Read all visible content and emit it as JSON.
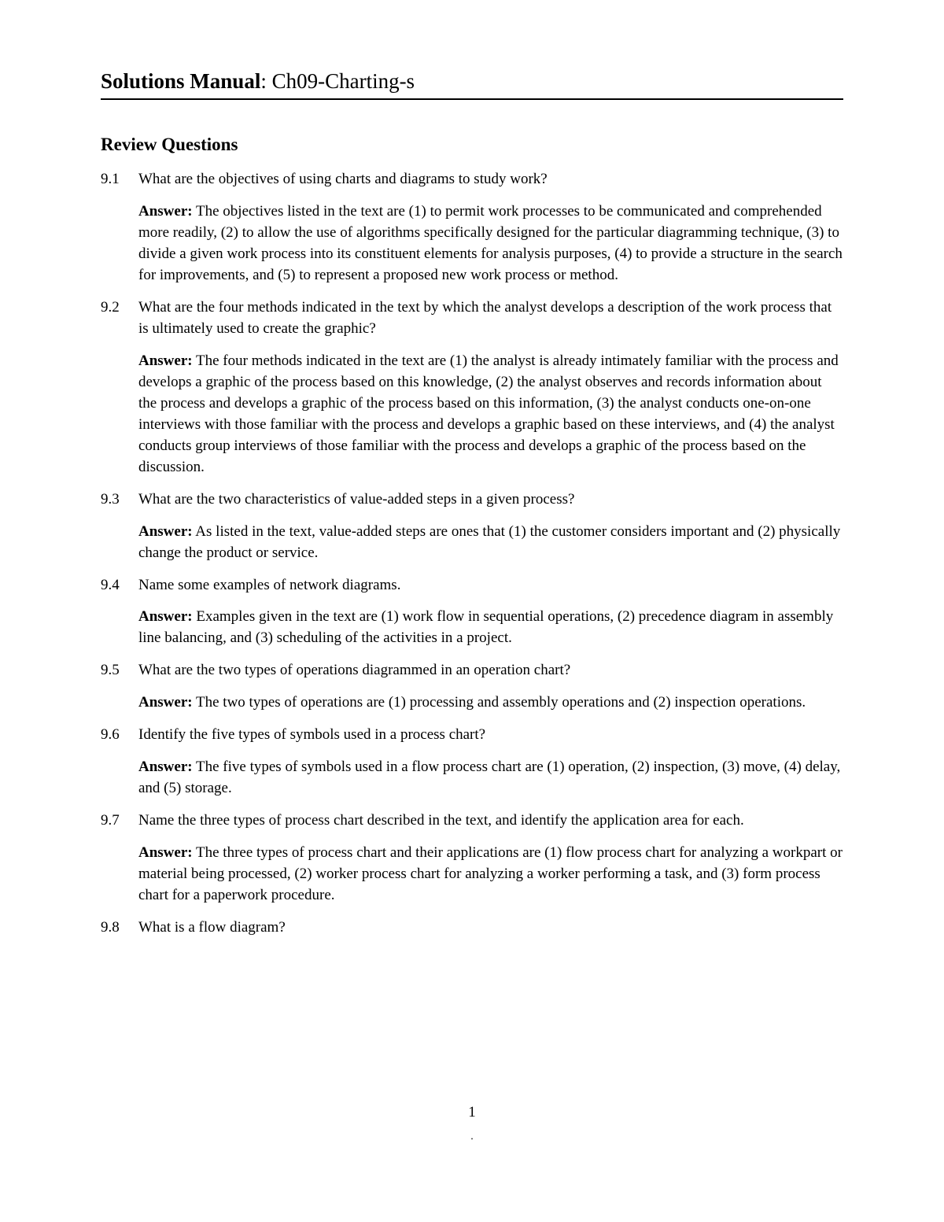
{
  "header": {
    "title_bold": "Solutions Manual",
    "title_rest": ": Ch09-Charting-s"
  },
  "section_title": "Review Questions",
  "answer_label": "Answer:",
  "questions": [
    {
      "number": "9.1",
      "question": "What are the objectives of using charts and diagrams to study work?",
      "answer": "The objectives listed in the text are (1) to permit work processes to be communicated and comprehended more readily, (2) to allow the use of algorithms specifically designed for the particular diagramming technique, (3) to divide a given work process into its constituent elements for analysis purposes, (4) to provide a structure in the search for improvements, and (5) to represent a proposed new work process or method."
    },
    {
      "number": "9.2",
      "question": "What are the four methods indicated in the text by which the analyst develops a description of the work process that is ultimately used to create the graphic?",
      "answer": "The four methods indicated in the text are (1) the analyst is already intimately familiar with the process and develops a graphic of the process based on this knowledge, (2) the analyst observes and records information about the process and develops a graphic of the process based on this information, (3) the analyst conducts one-on-one interviews with those familiar with the process and develops a graphic based on these interviews, and (4) the analyst conducts group interviews of those familiar with the process and develops a graphic of the process based on the discussion."
    },
    {
      "number": "9.3",
      "question": "What are the two characteristics of value-added steps in a given process?",
      "answer": "As listed in the text, value-added steps are ones that (1) the customer considers important and (2) physically change the product or service."
    },
    {
      "number": "9.4",
      "question": "Name some examples of network diagrams.",
      "answer": "Examples given in the text are (1) work flow in sequential operations, (2) precedence diagram in assembly line balancing, and (3) scheduling of the activities in a project."
    },
    {
      "number": "9.5",
      "question": "What are the two types of operations diagrammed in an operation chart?",
      "answer": "The two types of operations are (1) processing and assembly operations and (2) inspection operations."
    },
    {
      "number": "9.6",
      "question": "Identify the five types of symbols used in a process chart?",
      "answer": "The five types of symbols used in a flow process chart are (1) operation, (2) inspection, (3) move, (4) delay, and (5) storage."
    },
    {
      "number": "9.7",
      "question": "Name the three types of process chart described in the text, and identify the application area for each.",
      "answer": "The three types of process chart and their applications are (1) flow process chart for analyzing a workpart or material being processed, (2) worker process chart for analyzing a worker performing a task, and (3) form process chart for a paperwork procedure."
    },
    {
      "number": "9.8",
      "question": "What is a flow diagram?",
      "answer": ""
    }
  ],
  "page_number": "1",
  "page_dot": "."
}
